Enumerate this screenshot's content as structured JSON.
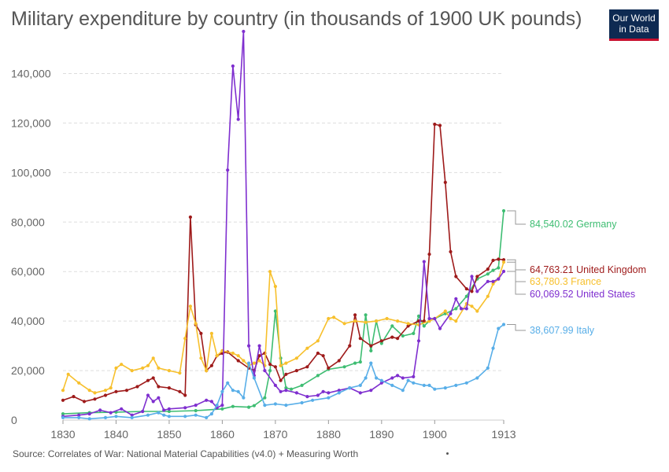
{
  "header": {
    "title": "Military expenditure by country (in thousands of 1900 UK pounds)",
    "logo_line1": "Our World",
    "logo_line2": "in Data"
  },
  "footer": {
    "source": "Source: Correlates of War: National Material Capabilities (v4.0) + Measuring Worth"
  },
  "chart_data": {
    "type": "line",
    "title": "Military expenditure by country (in thousands of 1900 UK pounds)",
    "xlabel": "",
    "ylabel": "",
    "xlim": [
      1830,
      1913
    ],
    "ylim": [
      0,
      150000
    ],
    "x_ticks": [
      "1830",
      "1840",
      "1850",
      "1860",
      "1870",
      "1880",
      "1890",
      "1900",
      "1913"
    ],
    "y_ticks": [
      "0",
      "20,000",
      "40,000",
      "60,000",
      "80,000",
      "100,000",
      "120,000",
      "140,000"
    ],
    "grid": "horizontal dashed",
    "legend": "right-end labels",
    "series": [
      {
        "name": "Germany",
        "end_label": "84,540.02 Germany",
        "color": "#3ebd72",
        "points": [
          [
            1830,
            2500
          ],
          [
            1835,
            3000
          ],
          [
            1840,
            3200
          ],
          [
            1845,
            3500
          ],
          [
            1850,
            3500
          ],
          [
            1855,
            3800
          ],
          [
            1860,
            4500
          ],
          [
            1862,
            5500
          ],
          [
            1865,
            5200
          ],
          [
            1866,
            5800
          ],
          [
            1868,
            9000
          ],
          [
            1869,
            20000
          ],
          [
            1870,
            44000
          ],
          [
            1871,
            25000
          ],
          [
            1872,
            13000
          ],
          [
            1873,
            12500
          ],
          [
            1875,
            14000
          ],
          [
            1878,
            18000
          ],
          [
            1880,
            20500
          ],
          [
            1883,
            21500
          ],
          [
            1885,
            23000
          ],
          [
            1886,
            23500
          ],
          [
            1887,
            42500
          ],
          [
            1888,
            28000
          ],
          [
            1889,
            40000
          ],
          [
            1890,
            31000
          ],
          [
            1892,
            38000
          ],
          [
            1894,
            34000
          ],
          [
            1896,
            35000
          ],
          [
            1897,
            42000
          ],
          [
            1898,
            38000
          ],
          [
            1899,
            40000
          ],
          [
            1900,
            41000
          ],
          [
            1902,
            43000
          ],
          [
            1904,
            45000
          ],
          [
            1906,
            50000
          ],
          [
            1908,
            57000
          ],
          [
            1910,
            59000
          ],
          [
            1911,
            60500
          ],
          [
            1912,
            61500
          ],
          [
            1913,
            84540
          ]
        ]
      },
      {
        "name": "United Kingdom",
        "end_label": "64,763.21 United Kingdom",
        "color": "#9e1a1a",
        "points": [
          [
            1830,
            8000
          ],
          [
            1832,
            9500
          ],
          [
            1834,
            7500
          ],
          [
            1836,
            8500
          ],
          [
            1838,
            10000
          ],
          [
            1840,
            11500
          ],
          [
            1842,
            12000
          ],
          [
            1844,
            13500
          ],
          [
            1846,
            16000
          ],
          [
            1847,
            17000
          ],
          [
            1848,
            13500
          ],
          [
            1850,
            13000
          ],
          [
            1852,
            11500
          ],
          [
            1853,
            10000
          ],
          [
            1854,
            82000
          ],
          [
            1855,
            38500
          ],
          [
            1856,
            35000
          ],
          [
            1857,
            20000
          ],
          [
            1858,
            22000
          ],
          [
            1859,
            26000
          ],
          [
            1860,
            27000
          ],
          [
            1861,
            27500
          ],
          [
            1863,
            24000
          ],
          [
            1865,
            21000
          ],
          [
            1866,
            20000
          ],
          [
            1867,
            26000
          ],
          [
            1868,
            27000
          ],
          [
            1869,
            22500
          ],
          [
            1870,
            21500
          ],
          [
            1871,
            16000
          ],
          [
            1872,
            18500
          ],
          [
            1874,
            20000
          ],
          [
            1876,
            21500
          ],
          [
            1878,
            27000
          ],
          [
            1879,
            26000
          ],
          [
            1880,
            21000
          ],
          [
            1882,
            24000
          ],
          [
            1884,
            30000
          ],
          [
            1885,
            42500
          ],
          [
            1886,
            33000
          ],
          [
            1888,
            30000
          ],
          [
            1890,
            32000
          ],
          [
            1892,
            33500
          ],
          [
            1893,
            33000
          ],
          [
            1895,
            38000
          ],
          [
            1897,
            40000
          ],
          [
            1898,
            40000
          ],
          [
            1899,
            67000
          ],
          [
            1900,
            119500
          ],
          [
            1901,
            119000
          ],
          [
            1902,
            96000
          ],
          [
            1903,
            68000
          ],
          [
            1904,
            58000
          ],
          [
            1906,
            53000
          ],
          [
            1907,
            52000
          ],
          [
            1908,
            58000
          ],
          [
            1910,
            61000
          ],
          [
            1911,
            64500
          ],
          [
            1912,
            65000
          ],
          [
            1913,
            64763
          ]
        ]
      },
      {
        "name": "France",
        "end_label": "63,780.3 France",
        "color": "#f7c02d",
        "points": [
          [
            1830,
            12000
          ],
          [
            1831,
            18500
          ],
          [
            1833,
            15000
          ],
          [
            1835,
            12000
          ],
          [
            1836,
            11000
          ],
          [
            1838,
            12000
          ],
          [
            1839,
            13000
          ],
          [
            1840,
            21000
          ],
          [
            1841,
            22500
          ],
          [
            1843,
            20000
          ],
          [
            1845,
            21000
          ],
          [
            1846,
            22000
          ],
          [
            1847,
            25000
          ],
          [
            1848,
            21000
          ],
          [
            1850,
            20000
          ],
          [
            1852,
            19000
          ],
          [
            1853,
            33000
          ],
          [
            1854,
            46000
          ],
          [
            1855,
            39000
          ],
          [
            1856,
            25000
          ],
          [
            1857,
            20000
          ],
          [
            1858,
            35000
          ],
          [
            1859,
            26000
          ],
          [
            1860,
            28000
          ],
          [
            1862,
            27000
          ],
          [
            1863,
            26000
          ],
          [
            1864,
            24000
          ],
          [
            1865,
            22000
          ],
          [
            1866,
            23000
          ],
          [
            1867,
            24000
          ],
          [
            1868,
            22000
          ],
          [
            1869,
            60000
          ],
          [
            1870,
            54000
          ],
          [
            1871,
            22000
          ],
          [
            1872,
            23000
          ],
          [
            1874,
            25000
          ],
          [
            1876,
            29000
          ],
          [
            1878,
            32000
          ],
          [
            1880,
            41000
          ],
          [
            1881,
            41500
          ],
          [
            1883,
            39000
          ],
          [
            1885,
            40000
          ],
          [
            1887,
            39500
          ],
          [
            1889,
            40000
          ],
          [
            1891,
            41000
          ],
          [
            1893,
            40000
          ],
          [
            1895,
            39000
          ],
          [
            1897,
            38500
          ],
          [
            1899,
            40000
          ],
          [
            1900,
            41000
          ],
          [
            1902,
            44000
          ],
          [
            1903,
            41000
          ],
          [
            1904,
            40000
          ],
          [
            1906,
            47000
          ],
          [
            1907,
            46000
          ],
          [
            1908,
            44000
          ],
          [
            1910,
            50000
          ],
          [
            1911,
            55000
          ],
          [
            1912,
            57000
          ],
          [
            1913,
            63780
          ]
        ]
      },
      {
        "name": "United States",
        "end_label": "60,069.52 United States",
        "color": "#7f2fcf",
        "points": [
          [
            1830,
            1500
          ],
          [
            1833,
            2000
          ],
          [
            1835,
            2500
          ],
          [
            1837,
            4000
          ],
          [
            1839,
            3000
          ],
          [
            1841,
            4500
          ],
          [
            1843,
            2000
          ],
          [
            1845,
            3500
          ],
          [
            1846,
            10000
          ],
          [
            1847,
            7500
          ],
          [
            1848,
            9000
          ],
          [
            1849,
            4000
          ],
          [
            1850,
            4500
          ],
          [
            1853,
            5000
          ],
          [
            1855,
            6000
          ],
          [
            1857,
            8000
          ],
          [
            1858,
            7500
          ],
          [
            1859,
            5000
          ],
          [
            1860,
            6000
          ],
          [
            1861,
            101000
          ],
          [
            1862,
            143000
          ],
          [
            1863,
            121500
          ],
          [
            1864,
            157000
          ],
          [
            1865,
            30000
          ],
          [
            1866,
            18000
          ],
          [
            1867,
            30000
          ],
          [
            1868,
            20000
          ],
          [
            1870,
            14000
          ],
          [
            1871,
            11500
          ],
          [
            1872,
            12000
          ],
          [
            1874,
            11000
          ],
          [
            1876,
            9500
          ],
          [
            1878,
            10000
          ],
          [
            1879,
            11500
          ],
          [
            1880,
            11000
          ],
          [
            1882,
            12000
          ],
          [
            1884,
            13000
          ],
          [
            1886,
            11000
          ],
          [
            1888,
            12000
          ],
          [
            1890,
            15000
          ],
          [
            1892,
            17000
          ],
          [
            1893,
            18000
          ],
          [
            1894,
            17000
          ],
          [
            1896,
            17500
          ],
          [
            1897,
            32000
          ],
          [
            1898,
            64000
          ],
          [
            1899,
            41000
          ],
          [
            1900,
            41000
          ],
          [
            1901,
            37000
          ],
          [
            1903,
            43000
          ],
          [
            1904,
            49000
          ],
          [
            1905,
            45000
          ],
          [
            1906,
            45000
          ],
          [
            1907,
            58000
          ],
          [
            1908,
            52000
          ],
          [
            1910,
            56000
          ],
          [
            1911,
            56000
          ],
          [
            1912,
            57000
          ],
          [
            1913,
            60070
          ]
        ]
      },
      {
        "name": "Italy",
        "end_label": "38,607.99 Italy",
        "color": "#58aee8",
        "points": [
          [
            1830,
            1000
          ],
          [
            1833,
            1000
          ],
          [
            1835,
            500
          ],
          [
            1838,
            1000
          ],
          [
            1840,
            1500
          ],
          [
            1843,
            1000
          ],
          [
            1846,
            2000
          ],
          [
            1848,
            3000
          ],
          [
            1849,
            2000
          ],
          [
            1850,
            1500
          ],
          [
            1853,
            1500
          ],
          [
            1855,
            2000
          ],
          [
            1857,
            1000
          ],
          [
            1858,
            2500
          ],
          [
            1859,
            6000
          ],
          [
            1860,
            11500
          ],
          [
            1861,
            15000
          ],
          [
            1862,
            12000
          ],
          [
            1863,
            11500
          ],
          [
            1864,
            9000
          ],
          [
            1865,
            23000
          ],
          [
            1866,
            17000
          ],
          [
            1868,
            6000
          ],
          [
            1870,
            6500
          ],
          [
            1872,
            6000
          ],
          [
            1875,
            7000
          ],
          [
            1877,
            8000
          ],
          [
            1880,
            9000
          ],
          [
            1882,
            11000
          ],
          [
            1884,
            13000
          ],
          [
            1886,
            14000
          ],
          [
            1887,
            17000
          ],
          [
            1888,
            23000
          ],
          [
            1889,
            17000
          ],
          [
            1890,
            16000
          ],
          [
            1892,
            14000
          ],
          [
            1894,
            12000
          ],
          [
            1895,
            16000
          ],
          [
            1896,
            15000
          ],
          [
            1898,
            14000
          ],
          [
            1899,
            14000
          ],
          [
            1900,
            12500
          ],
          [
            1902,
            13000
          ],
          [
            1904,
            14000
          ],
          [
            1906,
            15000
          ],
          [
            1908,
            17000
          ],
          [
            1910,
            21000
          ],
          [
            1911,
            29000
          ],
          [
            1912,
            37000
          ],
          [
            1913,
            38608
          ]
        ]
      }
    ]
  }
}
